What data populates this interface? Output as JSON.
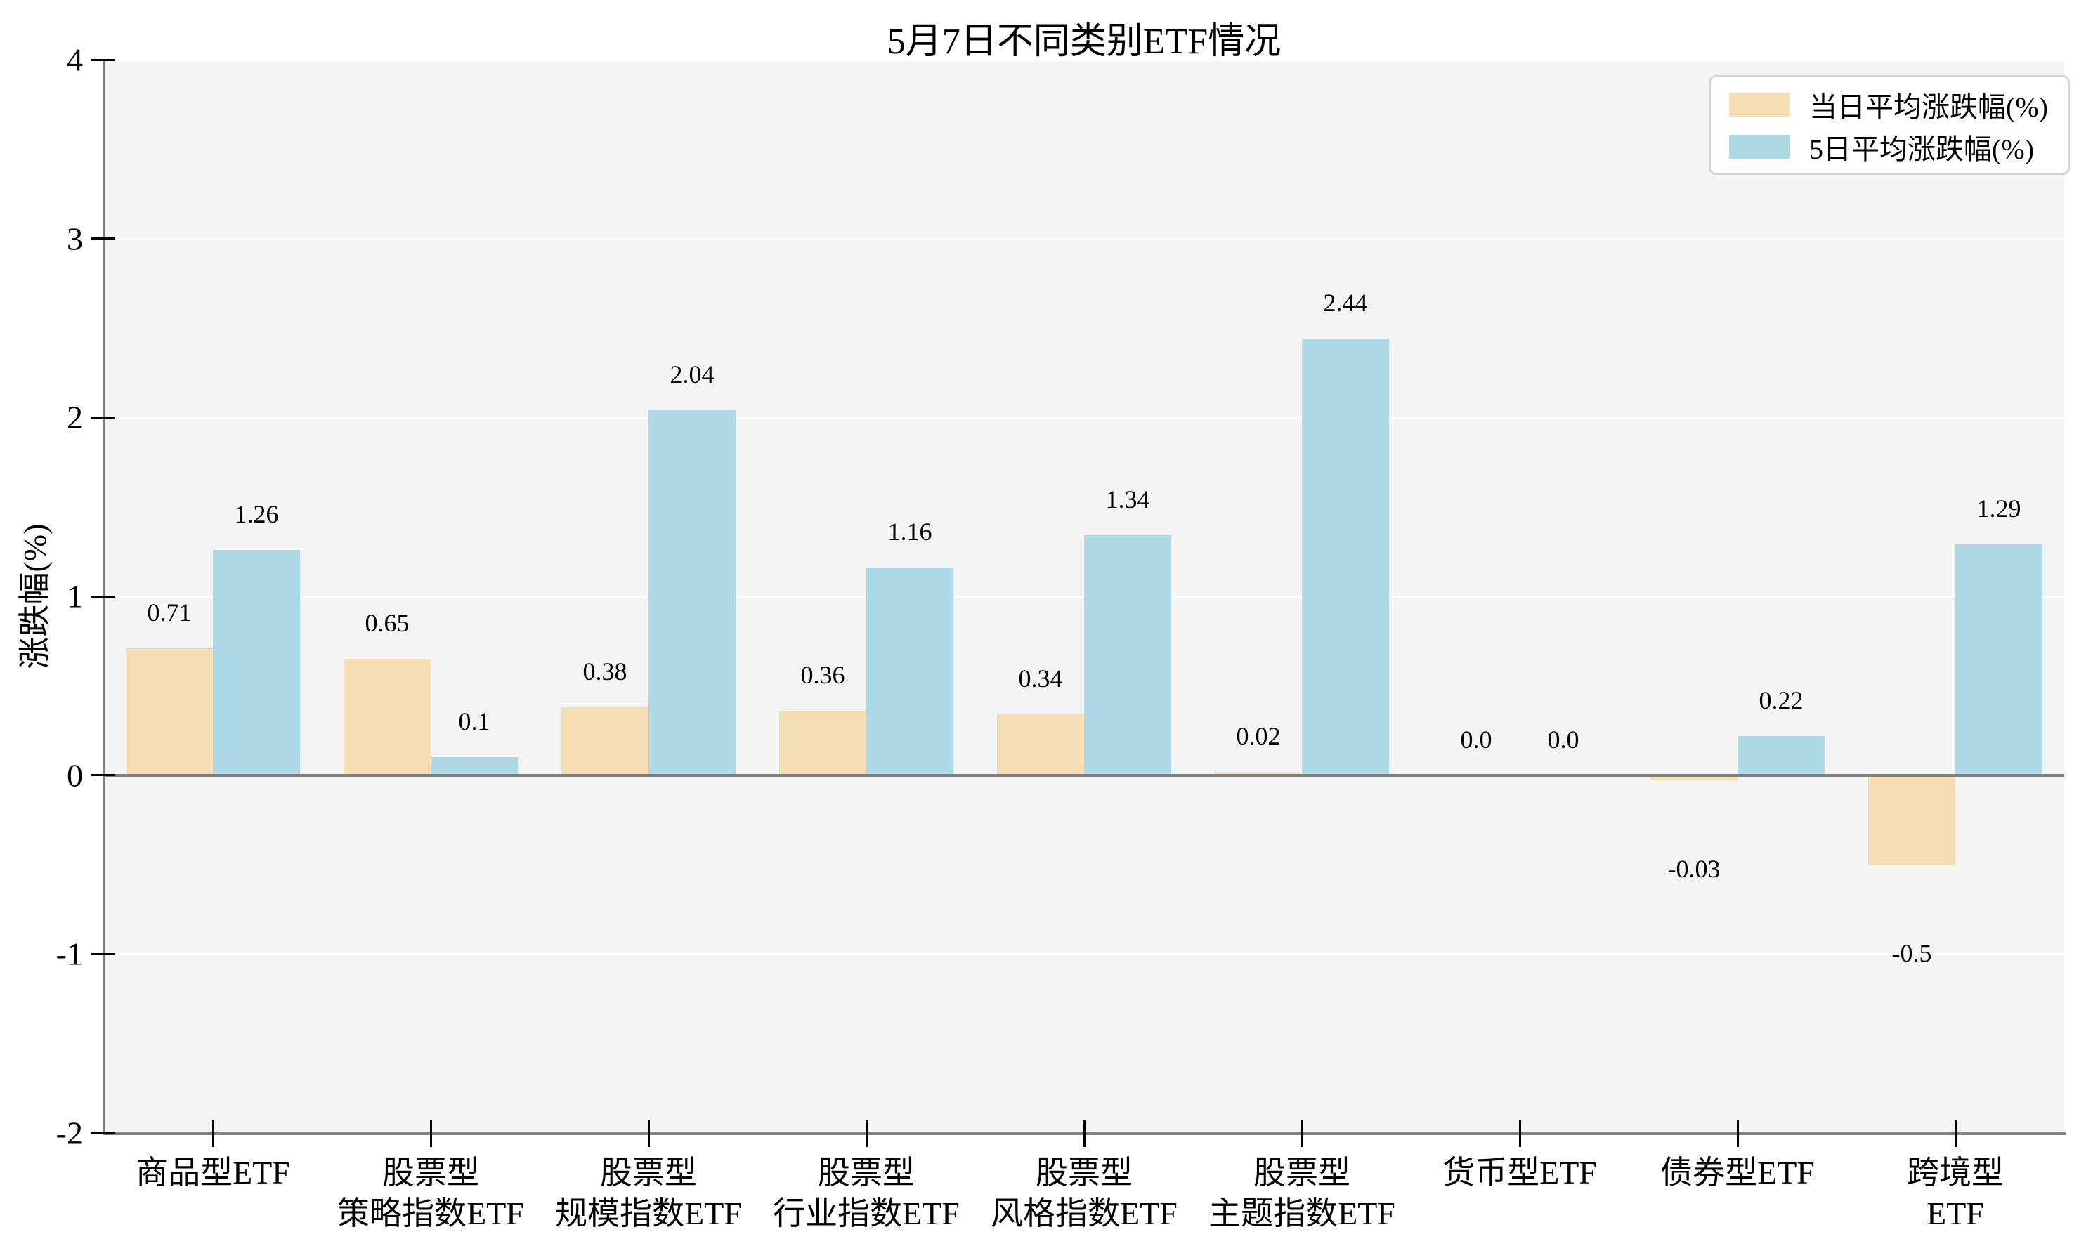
{
  "chart_data": {
    "type": "bar",
    "title": "5月7日不同类别ETF情况",
    "ylabel": "涨跌幅(%)",
    "ylim": [
      -2,
      4
    ],
    "yticks": [
      {
        "value": -2,
        "label": "-2"
      },
      {
        "value": -1,
        "label": "-1"
      },
      {
        "value": 0,
        "label": "0"
      },
      {
        "value": 1,
        "label": "1"
      },
      {
        "value": 2,
        "label": "2"
      },
      {
        "value": 3,
        "label": "3"
      },
      {
        "value": 4,
        "label": "4"
      }
    ],
    "grid": "horizontal",
    "legend_position": "upper-right",
    "categories": [
      "商品型ETF",
      "股票型\n策略指数ETF",
      "股票型\n规模指数ETF",
      "股票型\n行业指数ETF",
      "股票型\n风格指数ETF",
      "股票型\n主题指数ETF",
      "货币型ETF",
      "债券型ETF",
      "跨境型ETF"
    ],
    "series": [
      {
        "name": "当日平均涨跌幅(%)",
        "color": "#f5deb3",
        "values": [
          0.71,
          0.65,
          0.38,
          0.36,
          0.34,
          0.02,
          0.0,
          -0.03,
          -0.5
        ],
        "labels": [
          "0.71",
          "0.65",
          "0.38",
          "0.36",
          "0.34",
          "0.02",
          "0.0",
          "-0.03",
          "-0.5"
        ]
      },
      {
        "name": "5日平均涨跌幅(%)",
        "color": "#add8e6",
        "values": [
          1.26,
          0.1,
          2.04,
          1.16,
          1.34,
          2.44,
          0.0,
          0.22,
          1.29
        ],
        "labels": [
          "1.26",
          "0.1",
          "2.04",
          "1.16",
          "1.34",
          "2.44",
          "0.0",
          "0.22",
          "1.29"
        ]
      }
    ]
  },
  "colors": {
    "figure_bg": "#ffffff",
    "plot_bg": "#f4f4f4",
    "grid": "#ffffff",
    "axis": "#808080",
    "tick": "#000000",
    "text": "#000000",
    "series_day": "#f5deb3",
    "series_5day": "#add8e6",
    "legend_border": "#d4d4d4",
    "legend_bg": "#ffffff"
  }
}
